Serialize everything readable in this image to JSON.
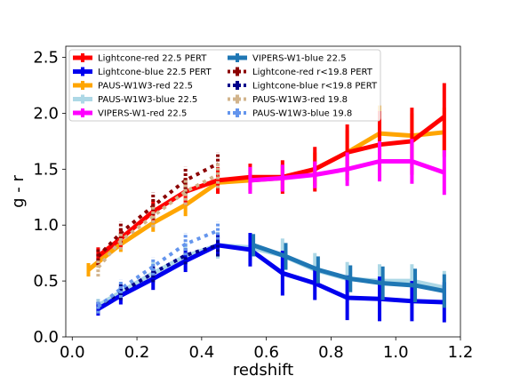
{
  "chart_data": {
    "type": "line",
    "title": "",
    "xlabel": "redshift",
    "ylabel": "g - r",
    "xlim": [
      -0.02,
      1.2
    ],
    "ylim": [
      0.0,
      2.6
    ],
    "xticks": [
      "0.0",
      "0.2",
      "0.4",
      "0.6",
      "0.8",
      "1.0",
      "1.2"
    ],
    "yticks": [
      "0.0",
      "0.5",
      "1.0",
      "1.5",
      "2.0",
      "2.5"
    ],
    "legend_position": "top-left",
    "grid": false,
    "series": [
      {
        "name": "Lightcone-red 22.5 PERT",
        "color": "#ff0000",
        "style": "solid",
        "x": [
          0.08,
          0.15,
          0.25,
          0.35,
          0.45,
          0.55,
          0.65,
          0.75,
          0.85,
          0.95,
          1.05,
          1.15
        ],
        "y": [
          0.72,
          0.88,
          1.12,
          1.3,
          1.4,
          1.43,
          1.43,
          1.5,
          1.65,
          1.72,
          1.75,
          1.97
        ],
        "err": [
          0.08,
          0.08,
          0.1,
          0.12,
          0.12,
          0.12,
          0.15,
          0.2,
          0.25,
          0.3,
          0.3,
          0.3
        ]
      },
      {
        "name": "Lightcone-blue 22.5 PERT",
        "color": "#0000ee",
        "style": "solid",
        "x": [
          0.08,
          0.15,
          0.25,
          0.35,
          0.45,
          0.55,
          0.65,
          0.75,
          0.85,
          0.95,
          1.05,
          1.15
        ],
        "y": [
          0.25,
          0.37,
          0.52,
          0.68,
          0.82,
          0.78,
          0.57,
          0.48,
          0.35,
          0.34,
          0.32,
          0.31
        ],
        "err": [
          0.06,
          0.08,
          0.1,
          0.1,
          0.1,
          0.15,
          0.2,
          0.15,
          0.2,
          0.2,
          0.18,
          0.18
        ]
      },
      {
        "name": "PAUS-W1W3-red 22.5",
        "color": "#ffa500",
        "style": "solid",
        "x": [
          0.05,
          0.15,
          0.25,
          0.35,
          0.45,
          0.55,
          0.65,
          0.75,
          0.85,
          0.95,
          1.05,
          1.15
        ],
        "y": [
          0.6,
          0.83,
          1.02,
          1.18,
          1.38,
          1.4,
          1.42,
          1.5,
          1.65,
          1.82,
          1.8,
          1.83
        ],
        "err": [
          0.06,
          0.07,
          0.08,
          0.1,
          0.1,
          0.12,
          0.12,
          0.15,
          0.2,
          0.25,
          0.2,
          0.22
        ]
      },
      {
        "name": "PAUS-W1W3-blue 22.5",
        "color": "#add8e6",
        "style": "solid",
        "x": [
          0.08,
          0.15,
          0.25,
          0.35,
          0.45,
          0.55,
          0.65,
          0.75,
          0.85,
          0.95,
          1.05,
          1.15
        ],
        "y": [
          0.28,
          0.4,
          0.57,
          0.72,
          0.82,
          0.8,
          0.73,
          0.6,
          0.52,
          0.5,
          0.5,
          0.44
        ],
        "err": [
          0.06,
          0.08,
          0.1,
          0.12,
          0.12,
          0.12,
          0.15,
          0.15,
          0.15,
          0.15,
          0.15,
          0.15
        ]
      },
      {
        "name": "VIPERS-W1-red 22.5",
        "color": "#ff00ff",
        "style": "solid",
        "x": [
          0.55,
          0.65,
          0.75,
          0.85,
          0.95,
          1.05,
          1.15
        ],
        "y": [
          1.4,
          1.42,
          1.45,
          1.5,
          1.57,
          1.57,
          1.47
        ],
        "err": [
          0.12,
          0.12,
          0.12,
          0.15,
          0.18,
          0.2,
          0.2
        ]
      },
      {
        "name": "VIPERS-W1-blue 22.5",
        "color": "#1f77b4",
        "style": "solid",
        "x": [
          0.56,
          0.66,
          0.76,
          0.86,
          0.96,
          1.06,
          1.15
        ],
        "y": [
          0.82,
          0.72,
          0.6,
          0.52,
          0.48,
          0.46,
          0.41
        ],
        "err": [
          0.1,
          0.12,
          0.12,
          0.12,
          0.15,
          0.15,
          0.15
        ]
      },
      {
        "name": "Lightcone-red r<19.8 PERT",
        "color": "#8b0000",
        "style": "dotted",
        "x": [
          0.08,
          0.15,
          0.25,
          0.35,
          0.45
        ],
        "y": [
          0.72,
          0.93,
          1.17,
          1.4,
          1.55
        ],
        "err": [
          0.08,
          0.1,
          0.12,
          0.12,
          0.1
        ]
      },
      {
        "name": "Lightcone-blue r<19.8 PERT",
        "color": "#00008b",
        "style": "dotted",
        "x": [
          0.08,
          0.15,
          0.25,
          0.35,
          0.45
        ],
        "y": [
          0.27,
          0.4,
          0.57,
          0.73,
          0.82
        ],
        "err": [
          0.06,
          0.07,
          0.08,
          0.08,
          0.1
        ]
      },
      {
        "name": "PAUS-W1W3-red 19.8",
        "color": "#d2b48c",
        "style": "dotted",
        "x": [
          0.08,
          0.15,
          0.25,
          0.35,
          0.45
        ],
        "y": [
          0.62,
          0.86,
          1.08,
          1.3,
          1.45
        ],
        "err": [
          0.08,
          0.08,
          0.1,
          0.12,
          0.12
        ]
      },
      {
        "name": "PAUS-W1W3-blue 19.8",
        "color": "#6495ed",
        "style": "dotted",
        "x": [
          0.08,
          0.15,
          0.25,
          0.35,
          0.45
        ],
        "y": [
          0.27,
          0.43,
          0.63,
          0.83,
          0.95
        ],
        "err": [
          0.06,
          0.08,
          0.08,
          0.1,
          0.08
        ]
      }
    ]
  }
}
